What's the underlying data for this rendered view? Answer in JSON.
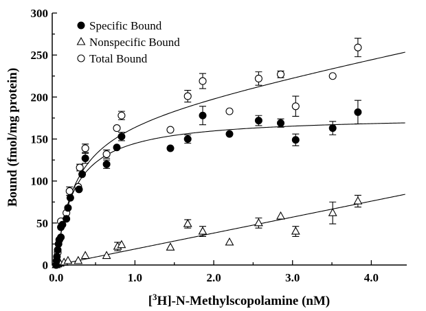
{
  "chart_data": {
    "type": "scatter",
    "xlabel_prefix": "[",
    "xlabel_sup": "3",
    "xlabel_rest": "H]-N-Methylscopolamine (nM)",
    "ylabel": "Bound (fmol/mg protein)",
    "xlim": [
      -0.05,
      4.45
    ],
    "ylim": [
      0,
      300
    ],
    "xticks": [
      0.0,
      1.0,
      2.0,
      3.0,
      4.0
    ],
    "xtick_labels": [
      "0.0",
      "1.0",
      "2.0",
      "3.0",
      "4.0"
    ],
    "yticks": [
      0,
      50,
      100,
      150,
      200,
      250,
      300
    ],
    "ytick_labels": [
      "0",
      "50",
      "100",
      "150",
      "200",
      "250",
      "300"
    ],
    "legend_position": "top-left",
    "series": [
      {
        "name": "Specific Bound",
        "marker": "filled-circle",
        "points": [
          {
            "x": 0.0,
            "y": 0
          },
          {
            "x": 0.005,
            "y": 5
          },
          {
            "x": 0.01,
            "y": 10
          },
          {
            "x": 0.02,
            "y": 18
          },
          {
            "x": 0.03,
            "y": 25
          },
          {
            "x": 0.04,
            "y": 30
          },
          {
            "x": 0.06,
            "y": 33
          },
          {
            "x": 0.06,
            "y": 45
          },
          {
            "x": 0.08,
            "y": 48
          },
          {
            "x": 0.13,
            "y": 55
          },
          {
            "x": 0.15,
            "y": 68
          },
          {
            "x": 0.18,
            "y": 80
          },
          {
            "x": 0.29,
            "y": 90
          },
          {
            "x": 0.33,
            "y": 108
          },
          {
            "x": 0.37,
            "y": 127
          },
          {
            "x": 0.64,
            "y": 120
          },
          {
            "x": 0.77,
            "y": 140
          },
          {
            "x": 0.83,
            "y": 153
          },
          {
            "x": 1.45,
            "y": 139
          },
          {
            "x": 1.67,
            "y": 150
          },
          {
            "x": 1.86,
            "y": 178
          },
          {
            "x": 2.2,
            "y": 156
          },
          {
            "x": 2.57,
            "y": 172
          },
          {
            "x": 2.85,
            "y": 169
          },
          {
            "x": 3.04,
            "y": 149
          },
          {
            "x": 3.51,
            "y": 163
          },
          {
            "x": 3.83,
            "y": 182
          }
        ],
        "fit": {
          "model": "one-site",
          "bmax": 178,
          "kd": 0.23
        }
      },
      {
        "name": "Nonspecific Bound",
        "marker": "open-triangle",
        "points": [
          {
            "x": 0.0,
            "y": 0
          },
          {
            "x": 0.02,
            "y": 1
          },
          {
            "x": 0.05,
            "y": 2
          },
          {
            "x": 0.1,
            "y": 3
          },
          {
            "x": 0.15,
            "y": 5
          },
          {
            "x": 0.28,
            "y": 5
          },
          {
            "x": 0.37,
            "y": 11
          },
          {
            "x": 0.64,
            "y": 11
          },
          {
            "x": 0.78,
            "y": 22
          },
          {
            "x": 0.83,
            "y": 24
          },
          {
            "x": 1.45,
            "y": 21
          },
          {
            "x": 1.67,
            "y": 49
          },
          {
            "x": 1.86,
            "y": 40
          },
          {
            "x": 2.2,
            "y": 27
          },
          {
            "x": 2.57,
            "y": 50
          },
          {
            "x": 2.85,
            "y": 58
          },
          {
            "x": 3.04,
            "y": 40
          },
          {
            "x": 3.51,
            "y": 62
          },
          {
            "x": 3.83,
            "y": 76
          }
        ],
        "fit": {
          "model": "linear",
          "slope": 19,
          "intercept": 0
        }
      },
      {
        "name": "Total Bound",
        "marker": "open-circle",
        "points": [
          {
            "x": 0.0,
            "y": 0
          },
          {
            "x": 0.02,
            "y": 15
          },
          {
            "x": 0.04,
            "y": 30
          },
          {
            "x": 0.06,
            "y": 52
          },
          {
            "x": 0.13,
            "y": 62
          },
          {
            "x": 0.17,
            "y": 88
          },
          {
            "x": 0.28,
            "y": 93
          },
          {
            "x": 0.3,
            "y": 116
          },
          {
            "x": 0.37,
            "y": 139
          },
          {
            "x": 0.64,
            "y": 132
          },
          {
            "x": 0.77,
            "y": 163
          },
          {
            "x": 0.83,
            "y": 178
          },
          {
            "x": 1.45,
            "y": 161
          },
          {
            "x": 1.67,
            "y": 201
          },
          {
            "x": 1.86,
            "y": 219
          },
          {
            "x": 2.2,
            "y": 183
          },
          {
            "x": 2.57,
            "y": 222
          },
          {
            "x": 2.85,
            "y": 227
          },
          {
            "x": 3.04,
            "y": 189
          },
          {
            "x": 3.51,
            "y": 225
          },
          {
            "x": 3.83,
            "y": 259
          }
        ],
        "fit": {
          "model": "one-site-plus-linear",
          "bmax": 178,
          "kd": 0.23,
          "slope": 19
        }
      }
    ],
    "error_bars": [
      {
        "series": 0,
        "x": 0.37,
        "y": 127,
        "err": 6
      },
      {
        "series": 0,
        "x": 0.64,
        "y": 120,
        "err": 5
      },
      {
        "series": 0,
        "x": 0.83,
        "y": 153,
        "err": 5
      },
      {
        "series": 0,
        "x": 1.67,
        "y": 150,
        "err": 5
      },
      {
        "series": 0,
        "x": 1.86,
        "y": 178,
        "err": 11
      },
      {
        "series": 0,
        "x": 2.57,
        "y": 172,
        "err": 6
      },
      {
        "series": 0,
        "x": 2.85,
        "y": 169,
        "err": 5
      },
      {
        "series": 0,
        "x": 3.04,
        "y": 149,
        "err": 7
      },
      {
        "series": 0,
        "x": 3.51,
        "y": 163,
        "err": 8
      },
      {
        "series": 0,
        "x": 3.83,
        "y": 182,
        "err": 14
      },
      {
        "series": 1,
        "x": 1.67,
        "y": 49,
        "err": 5
      },
      {
        "series": 1,
        "x": 1.86,
        "y": 40,
        "err": 6
      },
      {
        "series": 1,
        "x": 2.57,
        "y": 50,
        "err": 6
      },
      {
        "series": 1,
        "x": 3.04,
        "y": 40,
        "err": 6
      },
      {
        "series": 1,
        "x": 3.51,
        "y": 62,
        "err": 13
      },
      {
        "series": 1,
        "x": 3.83,
        "y": 76,
        "err": 7
      },
      {
        "series": 1,
        "x": 0.78,
        "y": 22,
        "err": 5
      },
      {
        "series": 2,
        "x": 0.37,
        "y": 139,
        "err": 5
      },
      {
        "series": 2,
        "x": 0.64,
        "y": 132,
        "err": 5
      },
      {
        "series": 2,
        "x": 0.83,
        "y": 178,
        "err": 5
      },
      {
        "series": 2,
        "x": 1.67,
        "y": 201,
        "err": 7
      },
      {
        "series": 2,
        "x": 1.86,
        "y": 219,
        "err": 9
      },
      {
        "series": 2,
        "x": 2.57,
        "y": 222,
        "err": 8
      },
      {
        "series": 2,
        "x": 2.85,
        "y": 227,
        "err": 4
      },
      {
        "series": 2,
        "x": 3.04,
        "y": 189,
        "err": 12
      },
      {
        "series": 2,
        "x": 3.83,
        "y": 259,
        "err": 11
      },
      {
        "series": 2,
        "x": 0.17,
        "y": 88,
        "err": 5
      },
      {
        "series": 2,
        "x": 0.3,
        "y": 116,
        "err": 4
      }
    ]
  },
  "colors": {
    "ink": "#000000",
    "background": "#ffffff"
  }
}
